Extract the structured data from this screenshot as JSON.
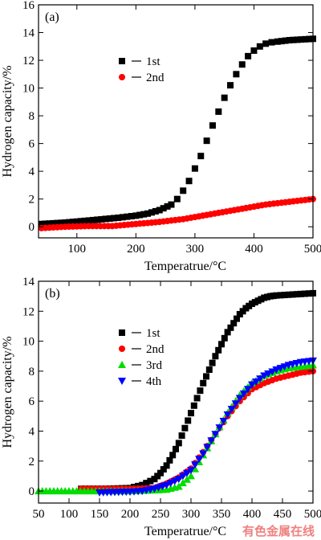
{
  "watermark": "有色金属在线",
  "chart_data": [
    {
      "type": "scatter",
      "panel_label": "(a)",
      "xlabel": "Temperatrue/°C",
      "ylabel": "Hydrogen capacity/%",
      "xlim": [
        35,
        500
      ],
      "ylim": [
        -0.8,
        16
      ],
      "xticks": [
        100,
        200,
        300,
        400,
        500
      ],
      "yticks": [
        0,
        2,
        4,
        6,
        8,
        10,
        12,
        14,
        16
      ],
      "legend_position": "center-left",
      "series": [
        {
          "name": "1st",
          "color": "#000000",
          "marker": "square",
          "x": [
            40,
            80,
            120,
            170,
            200,
            220,
            240,
            260,
            270,
            280,
            290,
            300,
            310,
            320,
            330,
            340,
            350,
            360,
            370,
            380,
            390,
            400,
            410,
            420,
            430,
            440,
            460,
            480,
            500
          ],
          "y": [
            0.2,
            0.3,
            0.45,
            0.65,
            0.8,
            0.95,
            1.2,
            1.6,
            2.0,
            2.6,
            3.3,
            4.2,
            5.1,
            6.2,
            7.3,
            8.3,
            9.3,
            10.2,
            11.0,
            11.7,
            12.3,
            12.7,
            13.0,
            13.2,
            13.3,
            13.35,
            13.45,
            13.5,
            13.55
          ]
        },
        {
          "name": "2nd",
          "color": "#ff0000",
          "marker": "circle",
          "x": [
            40,
            80,
            120,
            160,
            200,
            240,
            280,
            300,
            320,
            340,
            360,
            380,
            400,
            420,
            440,
            460,
            480,
            500
          ],
          "y": [
            -0.1,
            0.0,
            0.05,
            0.05,
            0.2,
            0.35,
            0.55,
            0.7,
            0.85,
            1.0,
            1.15,
            1.3,
            1.45,
            1.6,
            1.7,
            1.8,
            1.9,
            2.0
          ]
        }
      ]
    },
    {
      "type": "scatter",
      "panel_label": "(b)",
      "xlabel": "Temperatrue/°C",
      "ylabel": "Hydrogen capacity/%",
      "xlim": [
        50,
        500
      ],
      "ylim": [
        -0.8,
        14
      ],
      "xticks": [
        50,
        100,
        150,
        200,
        250,
        300,
        350,
        400,
        450,
        500
      ],
      "yticks": [
        0,
        2,
        4,
        6,
        8,
        10,
        12,
        14
      ],
      "legend_position": "center-left",
      "series": [
        {
          "name": "1st",
          "color": "#000000",
          "marker": "square",
          "x": [
            120,
            160,
            200,
            220,
            240,
            250,
            260,
            270,
            280,
            290,
            300,
            310,
            320,
            330,
            340,
            350,
            360,
            370,
            380,
            390,
            400,
            410,
            420,
            430,
            440,
            460,
            480,
            500
          ],
          "y": [
            0.15,
            0.15,
            0.2,
            0.4,
            0.8,
            1.2,
            1.7,
            2.4,
            3.2,
            4.2,
            5.2,
            6.2,
            7.2,
            8.1,
            9.0,
            9.8,
            10.6,
            11.2,
            11.8,
            12.2,
            12.5,
            12.7,
            12.9,
            13.0,
            13.05,
            13.1,
            13.15,
            13.2
          ]
        },
        {
          "name": "2nd",
          "color": "#ff0000",
          "marker": "circle",
          "x": [
            120,
            160,
            200,
            240,
            260,
            280,
            300,
            320,
            340,
            360,
            380,
            400,
            420,
            440,
            460,
            480,
            500
          ],
          "y": [
            0.15,
            0.15,
            0.15,
            0.2,
            0.5,
            0.9,
            1.5,
            2.6,
            3.8,
            5.0,
            6.0,
            6.8,
            7.2,
            7.5,
            7.7,
            7.9,
            8.0
          ]
        },
        {
          "name": "3rd",
          "color": "#00dd00",
          "marker": "triangle-up",
          "x": [
            50,
            100,
            150,
            200,
            240,
            260,
            280,
            300,
            320,
            340,
            360,
            380,
            400,
            420,
            440,
            460,
            480,
            500
          ],
          "y": [
            0.0,
            0.0,
            0.0,
            0.0,
            0.05,
            0.1,
            0.3,
            1.0,
            2.4,
            3.8,
            5.2,
            6.4,
            7.2,
            7.7,
            8.0,
            8.2,
            8.3,
            8.4
          ]
        },
        {
          "name": "4th",
          "color": "#0000ff",
          "marker": "triangle-down",
          "x": [
            150,
            200,
            220,
            240,
            260,
            280,
            300,
            320,
            340,
            360,
            380,
            400,
            420,
            440,
            460,
            480,
            500
          ],
          "y": [
            -0.1,
            -0.05,
            0.0,
            0.15,
            0.4,
            0.8,
            1.4,
            2.5,
            3.8,
            5.1,
            6.2,
            7.1,
            7.7,
            8.1,
            8.4,
            8.6,
            8.7
          ]
        }
      ]
    }
  ]
}
